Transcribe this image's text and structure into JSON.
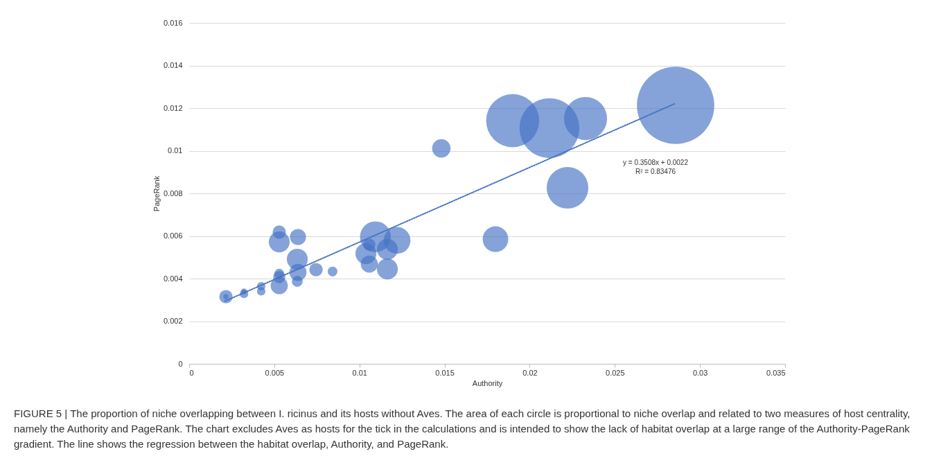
{
  "chart_data": {
    "type": "bubble",
    "xlabel": "Authority",
    "ylabel": "PageRank",
    "xlim": [
      0,
      0.035
    ],
    "xticks": [
      0,
      0.005,
      0.01,
      0.015,
      0.02,
      0.025,
      0.03,
      0.035
    ],
    "ylim": [
      0,
      0.016
    ],
    "yticks": [
      0,
      0.002,
      0.004,
      0.006,
      0.008,
      0.01,
      0.012,
      0.014,
      0.016
    ],
    "grid": "y",
    "relative": false,
    "series": [
      {
        "color": "#4472c4",
        "marker": "circle",
        "x": [
          0.02857,
          0.019,
          0.02116,
          0.02328,
          0.02222,
          0.01481,
          0.01799,
          0.01094,
          0.01221,
          0.01038,
          0.01058,
          0.01164,
          0.01164,
          0.01058,
          0.00842,
          0.00216,
          0.00216,
          0.00322,
          0.00322,
          0.00423,
          0.00423,
          0.00529,
          0.00529,
          0.00639,
          0.00635,
          0.00639,
          0.00635,
          0.00745,
          0.00529,
          0.00529,
          0.00529
        ],
        "values": [
          0.01213,
          0.01141,
          0.01106,
          0.01151,
          0.00826,
          0.01011,
          0.00585,
          0.00596,
          0.00579,
          0.00517,
          0.00468,
          0.00445,
          0.00537,
          0.00559,
          0.00433,
          0.00315,
          0.00315,
          0.00328,
          0.0034,
          0.00364,
          0.0034,
          0.00618,
          0.00572,
          0.00595,
          0.00491,
          0.00429,
          0.00387,
          0.00442,
          0.00367,
          0.00407,
          0.00423
        ],
        "sizes": [
          1,
          0.47,
          0.6,
          0.31,
          0.29,
          0.057,
          0.11,
          0.16,
          0.12,
          0.073,
          0.049,
          0.073,
          0.073,
          0.025,
          0.016,
          0.03,
          0.004,
          0.012,
          0.006,
          0.012,
          0.012,
          0.03,
          0.073,
          0.043,
          0.073,
          0.049,
          0.02,
          0.03,
          0.049,
          0.025,
          0.016
        ]
      },
      {
        "type": "line",
        "color": "#4472c4",
        "line_style": "dotted",
        "x": [
          0.0021,
          0.0285
        ],
        "values": [
          0.00294,
          0.0122
        ]
      }
    ],
    "annotations": [
      "y = 0.3508x + 0.0022",
      "R² = 0.83476",
      "FIGURE 5 | The proportion of niche overlapping between I. ricinus and its hosts without Aves. The area of each circle is proportional to niche overlap and related to two measures of host centrality, namely the Authority and PageRank. The chart excludes Aves as hosts for the tick in the calculations and is intended to show the lack of habitat overlap at a large range of the Authority-PageRank gradient. The line shows the regression between the habitat overlap, Authority, and PageRank."
    ]
  }
}
